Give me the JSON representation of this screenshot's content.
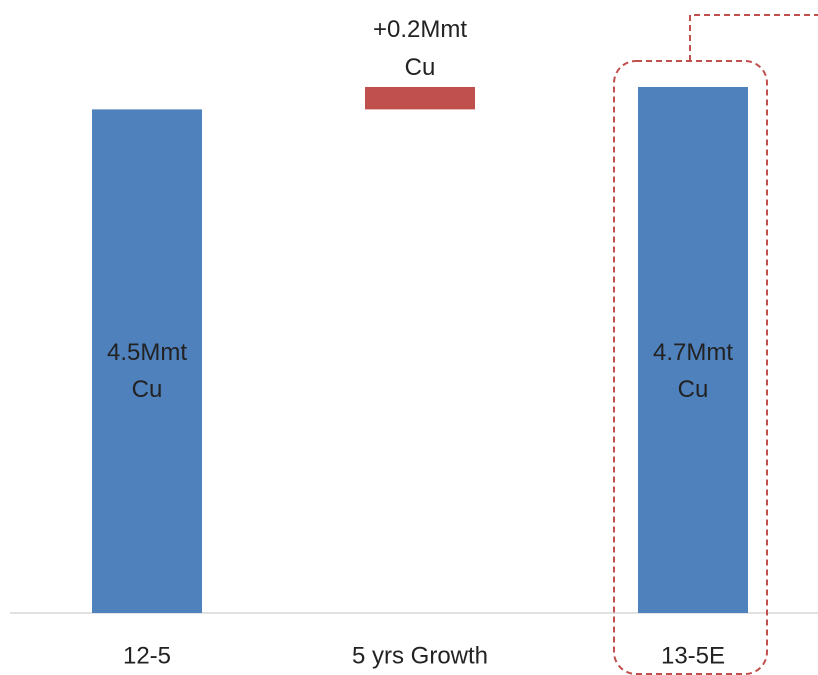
{
  "chart_data": {
    "type": "bar",
    "subtype": "waterfall",
    "categories": [
      "12-5",
      "5 yrs Growth",
      "13-5E"
    ],
    "values": [
      4.5,
      0.2,
      4.7
    ],
    "bar_labels": [
      [
        "4.5Mmt",
        "Cu"
      ],
      [
        "+0.2Mmt",
        "Cu"
      ],
      [
        "4.7Mmt",
        "Cu"
      ]
    ],
    "ylim": [
      0,
      4.7
    ],
    "grid": false,
    "legend": "none",
    "highlighted_category": "13-5E"
  },
  "colors": {
    "total_bar": "#4F81BD",
    "increase_bar": "#C0504D",
    "highlight_outline": "#C0504D",
    "axis": "#D9D9D9",
    "text": "#222222"
  }
}
